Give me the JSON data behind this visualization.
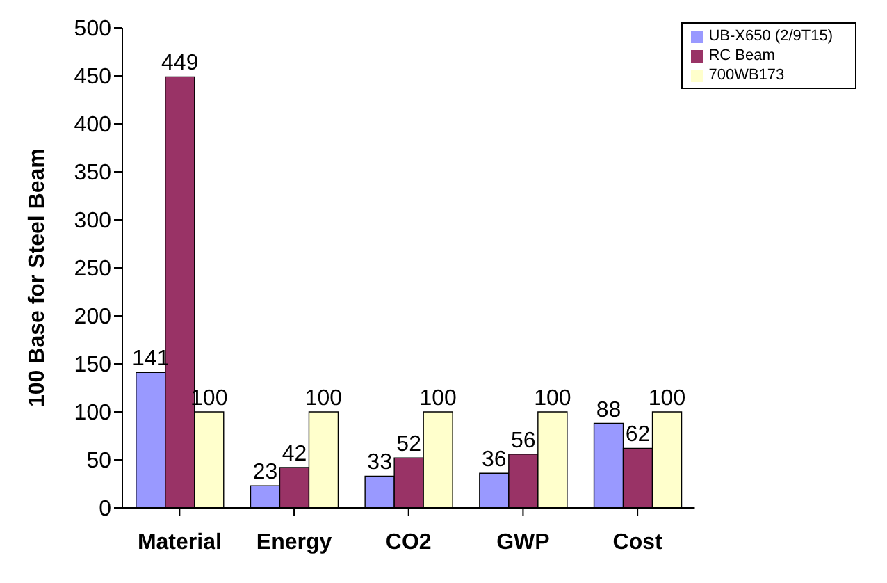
{
  "chart_data": {
    "type": "bar",
    "ylabel": "100 Base for Steel Beam",
    "categories": [
      "Material",
      "Energy",
      "CO2",
      "GWP",
      "Cost"
    ],
    "series": [
      {
        "name": "UB-X650 (2/9T15)",
        "color": "#9999ff",
        "values": [
          141,
          23,
          33,
          36,
          88
        ]
      },
      {
        "name": "RC Beam",
        "color": "#993366",
        "values": [
          449,
          42,
          52,
          56,
          62
        ]
      },
      {
        "name": "700WB173",
        "color": "#ffffcc",
        "values": [
          100,
          100,
          100,
          100,
          100
        ]
      }
    ],
    "ylim": [
      0,
      500
    ],
    "yticks": [
      0,
      50,
      100,
      150,
      200,
      250,
      300,
      350,
      400,
      450,
      500
    ],
    "grid": false,
    "legend": "top right",
    "data_labels": true
  }
}
